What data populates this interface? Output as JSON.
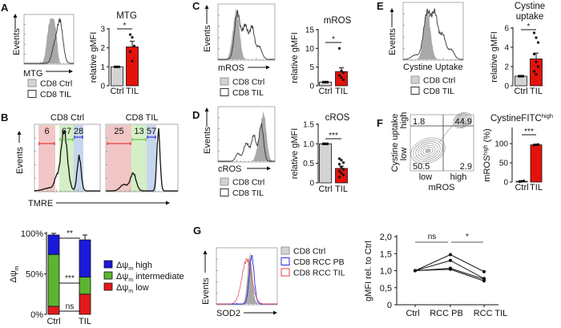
{
  "panel_labels": [
    "A",
    "B",
    "C",
    "D",
    "E",
    "F",
    "G"
  ],
  "colors": {
    "ctrl_bar": "#d3d3d3",
    "til_bar": "#e3120b",
    "ctrl_hist": "#a9a9a9",
    "rcc_pb": "#2a2ae0",
    "rcc_til": "#e0404a",
    "psi_high": "#1a1adb",
    "psi_intermediate": "#5cb531",
    "psi_low": "#e31a1c"
  },
  "histograms": {
    "A": {
      "ylabel": "Events",
      "xlabel": "MTG",
      "legend": [
        "CD8 Ctrl",
        "CD8 TIL"
      ]
    },
    "B": {
      "ylabel": "Events",
      "xlabel": "TMRE",
      "titles": [
        "CD8 Ctrl",
        "CD8 TIL"
      ],
      "gates_ctrl": [
        "6",
        "67",
        "28"
      ],
      "gates_til": [
        "25",
        "13",
        "57"
      ]
    },
    "C": {
      "ylabel": "Events",
      "xlabel": "mROS",
      "legend": [
        "CD8 Ctrl",
        "CD8 TIL"
      ]
    },
    "D": {
      "ylabel": "Events",
      "xlabel": "cROS",
      "legend": [
        "CD8 Ctrl",
        "CD8 TIL"
      ]
    },
    "E": {
      "ylabel": "Events",
      "xlabel": "Cystine Uptake",
      "legend": [
        "CD8 Ctrl",
        "CD8 TIL"
      ]
    },
    "F": {
      "ylabel": "Cystine uptake",
      "y_high": "high",
      "y_low": "low",
      "xlabel": "mROS",
      "x_low": "low",
      "x_high": "high",
      "quadrants": [
        "1.8",
        "44.9",
        "50.5",
        "2.9"
      ]
    },
    "G": {
      "ylabel": "Events",
      "xlabel": "SOD2",
      "legend": [
        "CD8 Ctrl",
        "CD8 RCC PB",
        "CD8 RCC TIL"
      ]
    }
  },
  "chart_data": [
    {
      "panel": "A",
      "type": "bar",
      "title": "MTG",
      "ylabel": "relative gMFI",
      "categories": [
        "Ctrl",
        "TIL"
      ],
      "values": [
        1.0,
        2.05
      ],
      "errors": [
        0.02,
        0.3
      ],
      "points": [
        [
          1,
          1,
          1,
          1,
          1
        ],
        [
          2.7,
          2.55,
          2.1,
          1.8,
          1.3
        ]
      ],
      "ylim": [
        0,
        3
      ],
      "yticks": [
        0,
        1,
        2,
        3
      ],
      "significance": "*"
    },
    {
      "panel": "B",
      "type": "bar",
      "stacked": true,
      "ylabel": "Δψ",
      "ylabel_sub": "m",
      "categories": [
        "Ctrl",
        "TIL"
      ],
      "ylim": [
        0,
        100
      ],
      "yticks": [
        "0%",
        "50%",
        "100%"
      ],
      "series": [
        {
          "prefix": "Δψ",
          "sub": "m",
          "name": " low",
          "values": [
            10,
            25
          ],
          "errors": [
            3,
            4
          ]
        },
        {
          "prefix": "Δψ",
          "sub": "m",
          "name": " intermediate",
          "values": [
            64,
            21
          ],
          "errors": [
            2,
            3
          ]
        },
        {
          "prefix": "Δψ",
          "sub": "m",
          "name": " high",
          "values": [
            24,
            46
          ],
          "errors": [
            2,
            6
          ]
        }
      ],
      "significance": [
        "ns",
        "***",
        "**"
      ],
      "legend_position": "right"
    },
    {
      "panel": "C",
      "type": "bar",
      "title": "mROS",
      "ylabel": "relative gMFI",
      "categories": [
        "Ctrl",
        "TIL"
      ],
      "values": [
        1.0,
        3.8
      ],
      "errors": [
        0.05,
        1.0
      ],
      "points": [
        [
          1,
          1,
          1,
          1,
          1,
          1
        ],
        [
          10,
          4,
          3.5,
          2.8,
          2.2,
          1.6
        ]
      ],
      "ylim": [
        0,
        15
      ],
      "yticks": [
        0,
        5,
        10,
        15
      ],
      "significance": "*"
    },
    {
      "panel": "D",
      "type": "bar",
      "title": "cROS",
      "ylabel": "relative gMFI",
      "categories": [
        "Ctrl",
        "TIL"
      ],
      "values": [
        1.0,
        0.37
      ],
      "errors": [
        0.01,
        0.06
      ],
      "points": [
        [
          1,
          1,
          1,
          1,
          1,
          1,
          1,
          1,
          1,
          1
        ],
        [
          0.62,
          0.58,
          0.52,
          0.48,
          0.4,
          0.35,
          0.3,
          0.25,
          0.2,
          0.15
        ]
      ],
      "ylim": [
        0,
        1.5
      ],
      "yticks": [
        "0",
        "0.5",
        "1.0",
        "1.5"
      ],
      "significance": "***"
    },
    {
      "panel": "E",
      "type": "bar",
      "title": "Cystine",
      "title2": "uptake",
      "ylabel": "relative gMFI",
      "categories": [
        "Ctrl",
        "TIL"
      ],
      "values": [
        1.0,
        2.8
      ],
      "errors": [
        0.03,
        0.6
      ],
      "points": [
        [
          1,
          1,
          1,
          1,
          1,
          1,
          1,
          1
        ],
        [
          5.5,
          5.0,
          4.5,
          3.3,
          2.5,
          2.0,
          1.5,
          1.2
        ]
      ],
      "ylim": [
        0,
        6
      ],
      "yticks": [
        0,
        2,
        4,
        6
      ],
      "significance": "*"
    },
    {
      "panel": "F",
      "type": "bar",
      "title": "CystineFITC",
      "title_sup": "high",
      "ylabel": "mROS",
      "ylabel_sup": "high",
      "ylabel_suffix": " (%)",
      "categories": [
        "Ctrl",
        "TIL"
      ],
      "values": [
        2,
        97
      ],
      "errors": [
        1,
        1
      ],
      "points": [
        [
          1,
          2,
          3,
          2
        ],
        [
          96,
          97,
          98,
          97
        ]
      ],
      "ylim": [
        0,
        140
      ],
      "yticks": [
        0,
        50,
        100
      ],
      "significance": "***"
    },
    {
      "panel": "G",
      "type": "line",
      "ylabel": "gMFI rel. to Ctrl",
      "categories": [
        "Ctrl",
        "RCC PB",
        "RCC TIL"
      ],
      "ylim": [
        0,
        2
      ],
      "yticks": [
        "0",
        "0,5",
        "1,0",
        "1,5",
        "2,0"
      ],
      "series": [
        {
          "values": [
            1.0,
            1.47,
            0.97
          ]
        },
        {
          "values": [
            1.0,
            1.3,
            0.77
          ]
        },
        {
          "values": [
            1.0,
            1.07,
            0.75
          ]
        },
        {
          "values": [
            1.0,
            1.04,
            0.7
          ]
        }
      ],
      "significance": [
        "ns",
        "*"
      ]
    }
  ]
}
